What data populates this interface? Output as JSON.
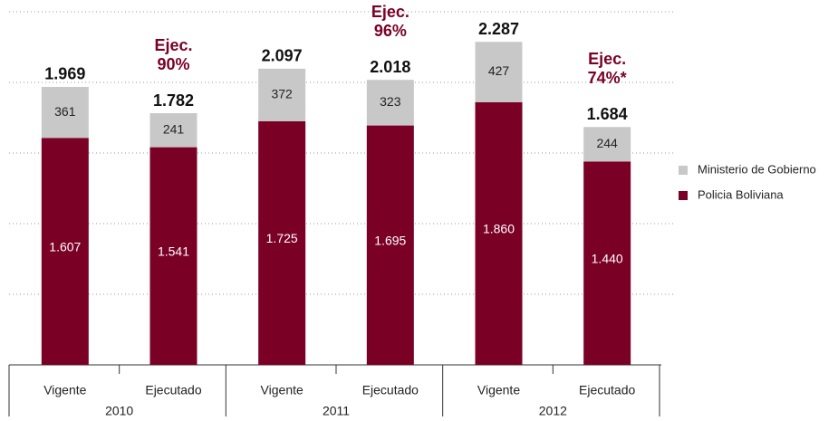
{
  "chart_data": {
    "type": "stacked_bar",
    "groups": [
      "2010",
      "2011",
      "2012"
    ],
    "categories": [
      "Vigente",
      "Ejecutado",
      "Vigente",
      "Ejecutado",
      "Vigente",
      "Ejecutado"
    ],
    "series": [
      {
        "name": "Policia Boliviana",
        "color": "#7a0026",
        "values": [
          1607,
          1541,
          1725,
          1695,
          1860,
          1440
        ],
        "value_labels": [
          "1.607",
          "1.541",
          "1.725",
          "1.695",
          "1.860",
          "1.440"
        ]
      },
      {
        "name": "Ministerio de Gobierno",
        "color": "#c8c8c8",
        "values": [
          361,
          241,
          372,
          323,
          427,
          244
        ],
        "value_labels": [
          "361",
          "241",
          "372",
          "323",
          "427",
          "244"
        ]
      }
    ],
    "totals": {
      "values": [
        1969,
        1782,
        2097,
        2018,
        2287,
        1684
      ],
      "value_labels": [
        "1.969",
        "1.782",
        "2.097",
        "2.018",
        "2.287",
        "1.684"
      ]
    },
    "annotations": [
      null,
      [
        "Ejec.",
        "90%"
      ],
      null,
      [
        "Ejec.",
        "96%"
      ],
      null,
      [
        "Ejec.",
        "74%*"
      ]
    ],
    "ylim": [
      0,
      2500
    ],
    "yticks": [
      500,
      1000,
      1500,
      2000,
      2500
    ],
    "grid": true,
    "legend": "right"
  }
}
